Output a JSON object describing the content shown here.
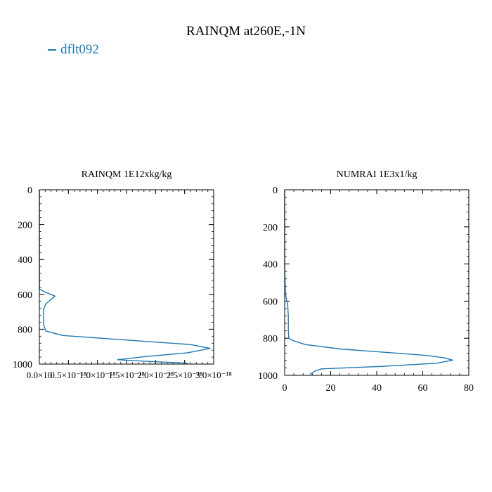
{
  "title": "RAINQM at260E,-1N",
  "legend": {
    "label": "dflt092",
    "color": "#1f77b4"
  },
  "chart_data": [
    {
      "type": "line",
      "title": "RAINQM  1E12xkg/kg",
      "xlim": [
        0,
        3e-18
      ],
      "ylim": [
        1000,
        0
      ],
      "xticks": [
        0,
        5e-19,
        1e-18,
        1.5e-18,
        2e-18,
        2.5e-18,
        3e-18
      ],
      "xtick_labels": [
        "0.0×10",
        "0.5×10⁻¹⁸",
        "1.0×10⁻¹⁸",
        "1.5×10⁻¹⁸",
        "2.0×10⁻¹⁸",
        "2.5×10⁻¹⁸",
        "3.0×10⁻¹⁸"
      ],
      "yticks": [
        0,
        200,
        400,
        600,
        800,
        1000
      ],
      "ytick_labels": [
        "0",
        "200",
        "400",
        "600",
        "800",
        "1000"
      ],
      "series": [
        {
          "name": "dflt092",
          "color": "#1f77b4",
          "points": [
            [
              0,
              0
            ],
            [
              0,
              540
            ],
            [
              0,
              570
            ],
            [
              1.2e-19,
              590
            ],
            [
              2.7e-19,
              610
            ],
            [
              1.1e-19,
              655
            ],
            [
              7e-20,
              690
            ],
            [
              7e-20,
              740
            ],
            [
              8e-20,
              780
            ],
            [
              1.1e-19,
              810
            ],
            [
              4e-19,
              836
            ],
            [
              1.25e-18,
              856
            ],
            [
              2.6e-18,
              888
            ],
            [
              2.94e-18,
              910
            ],
            [
              2.55e-18,
              935
            ],
            [
              1.8e-18,
              958
            ],
            [
              1.35e-18,
              975
            ],
            [
              1.9e-18,
              985
            ],
            [
              2.55e-18,
              995
            ]
          ]
        }
      ]
    },
    {
      "type": "line",
      "title": "NUMRAI  1E3x1/kg",
      "xlim": [
        0,
        80
      ],
      "ylim": [
        1000,
        0
      ],
      "xticks": [
        0,
        20,
        40,
        60,
        80
      ],
      "xtick_labels": [
        "0",
        "20",
        "40",
        "60",
        "80"
      ],
      "yticks": [
        0,
        200,
        400,
        600,
        800,
        1000
      ],
      "ytick_labels": [
        "0",
        "200",
        "400",
        "600",
        "800",
        "1000"
      ],
      "series": [
        {
          "name": "dflt092",
          "color": "#1f77b4",
          "points": [
            [
              0,
              0
            ],
            [
              0,
              400
            ],
            [
              0.3,
              560
            ],
            [
              1.3,
              620
            ],
            [
              1.6,
              680
            ],
            [
              1.6,
              760
            ],
            [
              1.8,
              800
            ],
            [
              3.5,
              812
            ],
            [
              9,
              834
            ],
            [
              24,
              858
            ],
            [
              48,
              880
            ],
            [
              62,
              893
            ],
            [
              69,
              905
            ],
            [
              73,
              918
            ],
            [
              66,
              935
            ],
            [
              42,
              952
            ],
            [
              16,
              965
            ],
            [
              13,
              978
            ],
            [
              11,
              995
            ]
          ]
        }
      ]
    }
  ]
}
